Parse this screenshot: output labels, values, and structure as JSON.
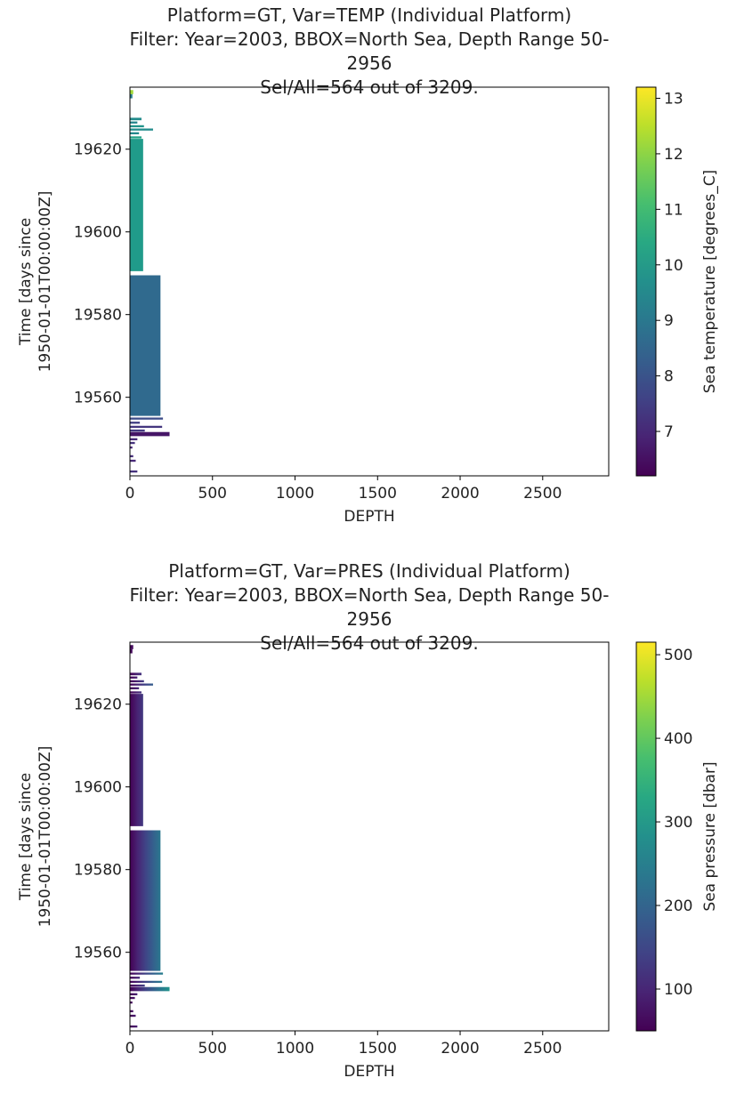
{
  "charts": [
    {
      "title_lines": [
        "Platform=GT, Var=TEMP (Individual Platform)",
        "Filter: Year=2003, BBOX=North Sea, Depth Range 50-2956",
        "Sel/All=564 out of 3209."
      ]
    },
    {
      "title_lines": [
        "Platform=GT, Var=PRES (Individual Platform)",
        "Filter: Year=2003, BBOX=North Sea, Depth Range 50-2956",
        "Sel/All=564 out of 3209."
      ]
    }
  ],
  "chart_data": [
    {
      "type": "heatmap",
      "title": "Platform=GT, Var=TEMP (Individual Platform)\nFilter: Year=2003, BBOX=North Sea, Depth Range 50-2956\nSel/All=564 out of 3209.",
      "xlabel": "DEPTH",
      "ylabel": "Time [days since\n1950-01-01T00:00:00Z]",
      "xlim": [
        0,
        2900
      ],
      "ylim": [
        19541,
        19635
      ],
      "x_ticks": [
        0,
        500,
        1000,
        1500,
        2000,
        2500
      ],
      "y_ticks": [
        19560,
        19580,
        19600,
        19620
      ],
      "colorbar": {
        "label": "Sea temperature [degrees_C]",
        "range": [
          6.2,
          13.2
        ],
        "ticks": [
          7,
          8,
          9,
          10,
          11,
          12,
          13
        ],
        "colormap": "viridis"
      },
      "profiles": [
        {
          "t0": 19633.3,
          "t1": 19634.3,
          "depth_max": 20,
          "value": 12.2
        },
        {
          "t0": 19632.3,
          "t1": 19633.3,
          "depth_max": 15,
          "value": 9.2
        },
        {
          "t0": 19627.0,
          "t1": 19627.6,
          "depth_max": 70,
          "value": 9.6
        },
        {
          "t0": 19626.2,
          "t1": 19626.7,
          "depth_max": 45,
          "value": 9.4
        },
        {
          "t0": 19625.3,
          "t1": 19625.8,
          "depth_max": 85,
          "value": 9.8
        },
        {
          "t0": 19624.5,
          "t1": 19625.0,
          "depth_max": 140,
          "value": 9.6
        },
        {
          "t0": 19623.6,
          "t1": 19624.1,
          "depth_max": 55,
          "value": 9.5
        },
        {
          "t0": 19622.6,
          "t1": 19623.1,
          "depth_max": 70,
          "value": 10.2
        },
        {
          "t0": 19590.5,
          "t1": 19622.5,
          "depth_max": 80,
          "value": 10.0
        },
        {
          "t0": 19555.5,
          "t1": 19589.5,
          "depth_max": 185,
          "value": 8.6
        },
        {
          "t0": 19554.6,
          "t1": 19555.1,
          "depth_max": 200,
          "value": 7.8
        },
        {
          "t0": 19553.6,
          "t1": 19554.1,
          "depth_max": 60,
          "value": 7.5
        },
        {
          "t0": 19552.6,
          "t1": 19553.1,
          "depth_max": 195,
          "value": 7.3
        },
        {
          "t0": 19551.7,
          "t1": 19552.2,
          "depth_max": 90,
          "value": 7.4
        },
        {
          "t0": 19550.6,
          "t1": 19551.6,
          "depth_max": 240,
          "value": 6.6
        },
        {
          "t0": 19549.6,
          "t1": 19550.1,
          "depth_max": 45,
          "value": 7.0
        },
        {
          "t0": 19548.7,
          "t1": 19549.2,
          "depth_max": 30,
          "value": 7.2
        },
        {
          "t0": 19547.6,
          "t1": 19548.1,
          "depth_max": 15,
          "value": 7.0
        },
        {
          "t0": 19545.5,
          "t1": 19546.0,
          "depth_max": 20,
          "value": 7.1
        },
        {
          "t0": 19544.4,
          "t1": 19544.9,
          "depth_max": 35,
          "value": 7.0
        },
        {
          "t0": 19541.8,
          "t1": 19542.3,
          "depth_max": 45,
          "value": 7.2
        }
      ]
    },
    {
      "type": "heatmap",
      "title": "Platform=GT, Var=PRES (Individual Platform)\nFilter: Year=2003, BBOX=North Sea, Depth Range 50-2956\nSel/All=564 out of 3209.",
      "xlabel": "DEPTH",
      "ylabel": "Time [days since\n1950-01-01T00:00:00Z]",
      "xlim": [
        0,
        2900
      ],
      "ylim": [
        19541,
        19635
      ],
      "x_ticks": [
        0,
        500,
        1000,
        1500,
        2000,
        2500
      ],
      "y_ticks": [
        19560,
        19580,
        19600,
        19620
      ],
      "colorbar": {
        "label": "Sea pressure [dbar]",
        "range": [
          50,
          515
        ],
        "ticks": [
          100,
          200,
          300,
          400,
          500
        ],
        "colormap": "viridis"
      },
      "value_model": "gradient with depth: pressure ≈ 50 + depth",
      "profiles": [
        {
          "t0": 19633.3,
          "t1": 19634.3,
          "depth_max": 20
        },
        {
          "t0": 19632.3,
          "t1": 19633.3,
          "depth_max": 15
        },
        {
          "t0": 19627.0,
          "t1": 19627.6,
          "depth_max": 70
        },
        {
          "t0": 19626.2,
          "t1": 19626.7,
          "depth_max": 45
        },
        {
          "t0": 19625.3,
          "t1": 19625.8,
          "depth_max": 85
        },
        {
          "t0": 19624.5,
          "t1": 19625.0,
          "depth_max": 140
        },
        {
          "t0": 19623.6,
          "t1": 19624.1,
          "depth_max": 55
        },
        {
          "t0": 19622.6,
          "t1": 19623.1,
          "depth_max": 70
        },
        {
          "t0": 19590.5,
          "t1": 19622.5,
          "depth_max": 80
        },
        {
          "t0": 19555.5,
          "t1": 19589.5,
          "depth_max": 185
        },
        {
          "t0": 19554.6,
          "t1": 19555.1,
          "depth_max": 200
        },
        {
          "t0": 19553.6,
          "t1": 19554.1,
          "depth_max": 60
        },
        {
          "t0": 19552.6,
          "t1": 19553.1,
          "depth_max": 195
        },
        {
          "t0": 19551.7,
          "t1": 19552.2,
          "depth_max": 90
        },
        {
          "t0": 19550.6,
          "t1": 19551.6,
          "depth_max": 240
        },
        {
          "t0": 19549.6,
          "t1": 19550.1,
          "depth_max": 45
        },
        {
          "t0": 19548.7,
          "t1": 19549.2,
          "depth_max": 30
        },
        {
          "t0": 19547.6,
          "t1": 19548.1,
          "depth_max": 15
        },
        {
          "t0": 19545.5,
          "t1": 19546.0,
          "depth_max": 20
        },
        {
          "t0": 19544.4,
          "t1": 19544.9,
          "depth_max": 35
        },
        {
          "t0": 19541.8,
          "t1": 19542.3,
          "depth_max": 45
        }
      ]
    }
  ]
}
